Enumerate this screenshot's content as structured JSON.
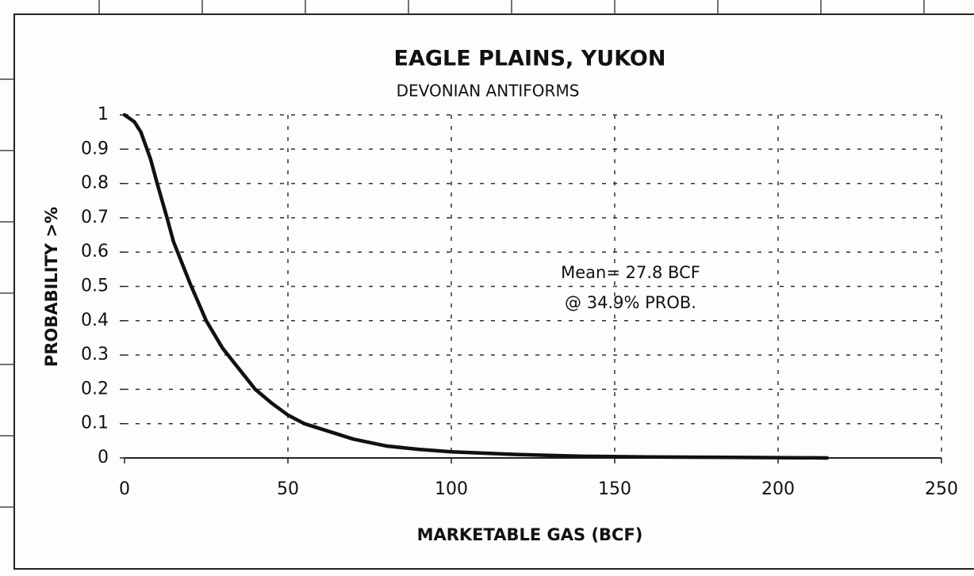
{
  "chart_data": {
    "type": "line",
    "title": "EAGLE PLAINS, YUKON",
    "subtitle": "DEVONIAN ANTIFORMS",
    "x_label": "MARKETABLE GAS  (BCF)",
    "y_label": "PROBABILITY >%",
    "annotations": [
      "Mean= 27.8 BCF",
      "@ 34.9% PROB."
    ],
    "x": [
      0,
      3,
      5,
      8,
      10,
      13,
      15,
      20,
      25,
      30,
      35,
      40,
      45,
      50,
      55,
      60,
      70,
      80,
      90,
      100,
      120,
      140,
      160,
      180,
      200,
      215
    ],
    "values": [
      1,
      0.98,
      0.95,
      0.87,
      0.8,
      0.7,
      0.63,
      0.51,
      0.4,
      0.32,
      0.26,
      0.2,
      0.16,
      0.125,
      0.1,
      0.085,
      0.055,
      0.035,
      0.025,
      0.018,
      0.01,
      0.005,
      0.003,
      0.002,
      0.001,
      0
    ],
    "color": "#111111",
    "xlim": [
      0,
      250
    ],
    "xticks": [
      0,
      50,
      100,
      150,
      200,
      250
    ],
    "ylim": [
      0,
      1
    ],
    "yticks": [
      0,
      0.1,
      0.2,
      0.3,
      0.4,
      0.5,
      0.6,
      0.7,
      0.8,
      0.9,
      1
    ],
    "grid": true
  }
}
